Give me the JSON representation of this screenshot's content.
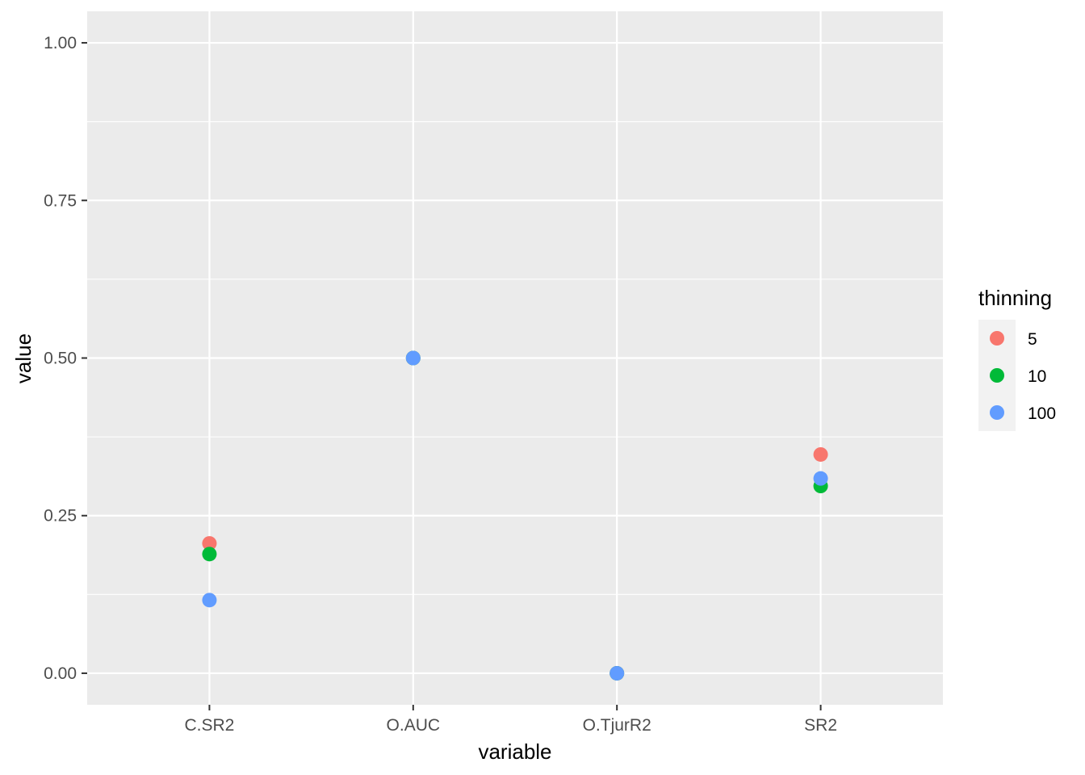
{
  "chart_data": {
    "type": "scatter",
    "xlabel": "variable",
    "ylabel": "value",
    "categories": [
      "C.SR2",
      "O.AUC",
      "O.TjurR2",
      "SR2"
    ],
    "ylim": [
      -0.05,
      1.05
    ],
    "yticks": [
      0.0,
      0.25,
      0.5,
      0.75,
      1.0
    ],
    "ytick_labels": [
      "0.00",
      "0.25",
      "0.50",
      "0.75",
      "1.00"
    ],
    "grid": true,
    "legend": {
      "title": "thinning",
      "position": "right"
    },
    "series": [
      {
        "name": "5",
        "color": "#F8766D",
        "points": [
          {
            "x": "C.SR2",
            "y": 0.206
          },
          {
            "x": "O.AUC",
            "y": 0.5
          },
          {
            "x": "O.TjurR2",
            "y": 0.0
          },
          {
            "x": "SR2",
            "y": 0.347
          }
        ]
      },
      {
        "name": "10",
        "color": "#00BA38",
        "points": [
          {
            "x": "C.SR2",
            "y": 0.189
          },
          {
            "x": "O.AUC",
            "y": 0.5
          },
          {
            "x": "O.TjurR2",
            "y": 0.0
          },
          {
            "x": "SR2",
            "y": 0.297
          }
        ]
      },
      {
        "name": "100",
        "color": "#619CFF",
        "points": [
          {
            "x": "C.SR2",
            "y": 0.116
          },
          {
            "x": "O.AUC",
            "y": 0.5
          },
          {
            "x": "O.TjurR2",
            "y": 0.0
          },
          {
            "x": "SR2",
            "y": 0.309
          }
        ]
      }
    ]
  },
  "colors": {
    "panel_background": "#EBEBEB",
    "grid_line": "#FFFFFF",
    "tick_mark": "#333333",
    "legend_key_background": "#F2F2F2"
  }
}
